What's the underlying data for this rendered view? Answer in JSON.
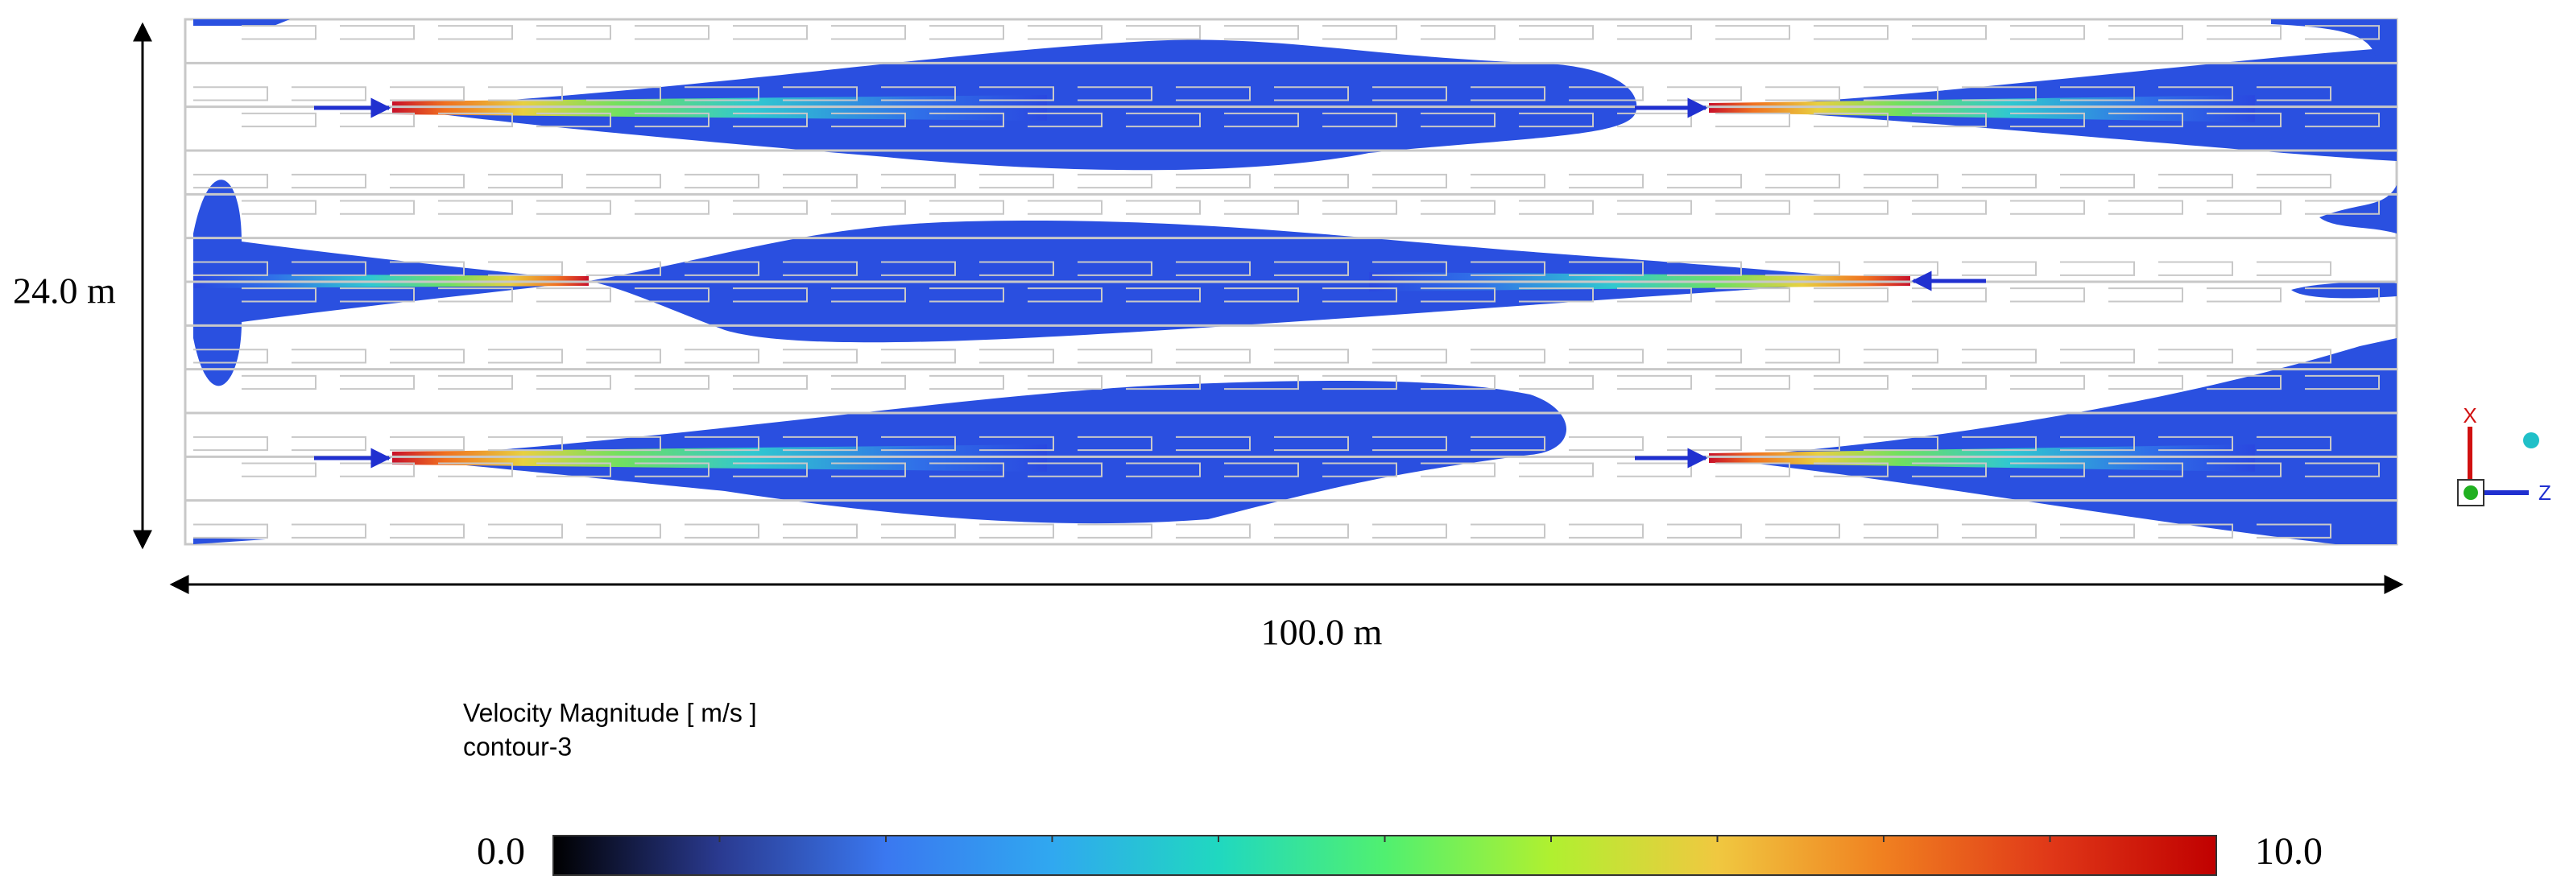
{
  "dimensions": {
    "height": "24.0 m",
    "width": "100.0 m"
  },
  "legend": {
    "title": "Velocity Magnitude [ m/s ]",
    "name": "contour-3",
    "min_label": "0.0",
    "max_label": "10.0"
  },
  "triad": {
    "x_label": "X",
    "z_label": "Z"
  }
}
